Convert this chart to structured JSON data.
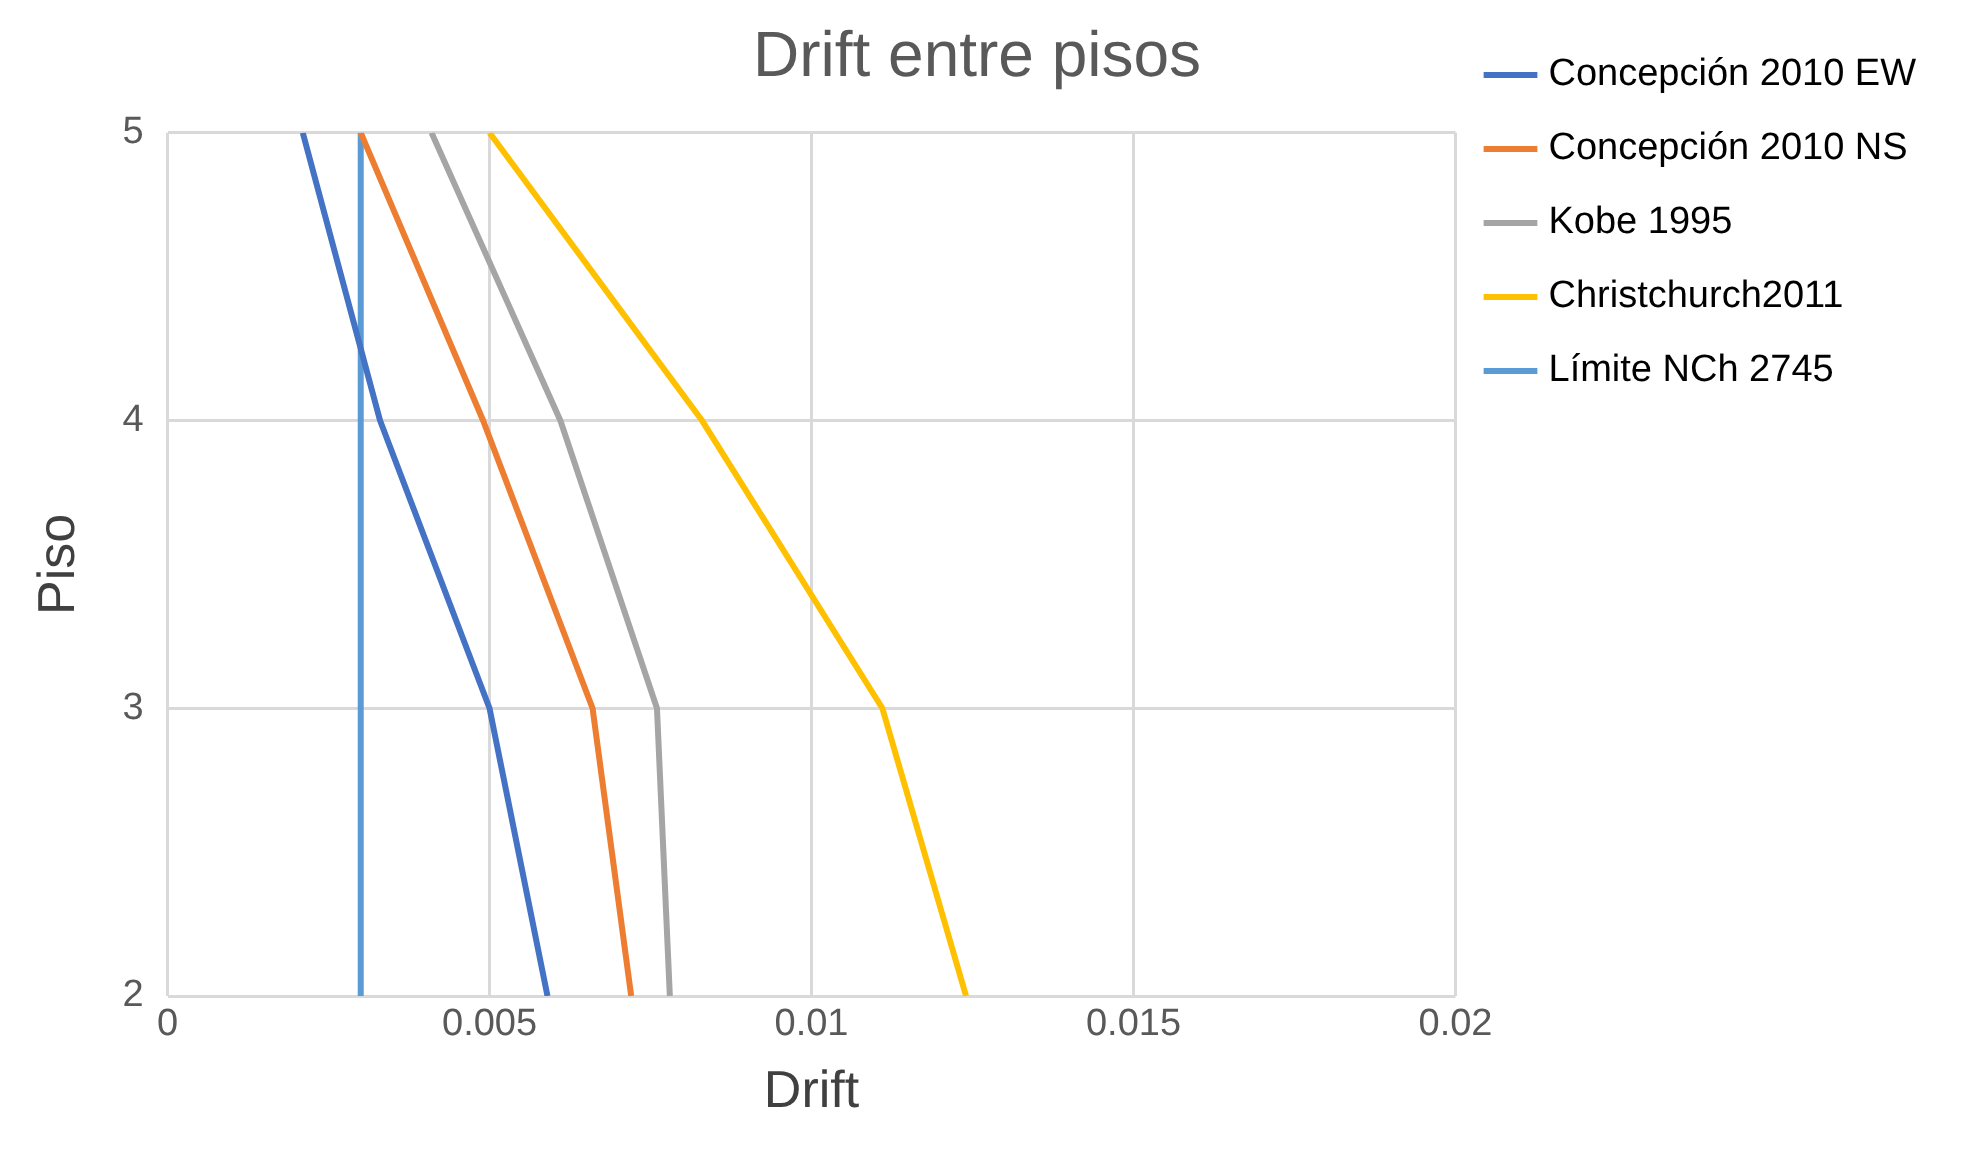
{
  "chart_data": {
    "type": "line",
    "title": "Drift entre pisos",
    "xlabel": "Drift",
    "ylabel": "Piso",
    "xlim": [
      0,
      0.02
    ],
    "xticks": [
      0,
      0.005,
      0.01,
      0.015,
      0.02
    ],
    "ylim": [
      2,
      5
    ],
    "yticks": [
      2,
      3,
      4,
      5
    ],
    "grid": true,
    "legend": "right",
    "marker": "none",
    "line_style": "solid",
    "series": [
      {
        "name": "Concepción 2010 EW",
        "color": "#4472c4",
        "x": [
          0.0021,
          0.0033,
          0.005,
          0.0059
        ],
        "values": [
          5,
          4,
          3,
          2
        ]
      },
      {
        "name": "Concepción 2010 NS",
        "color": "#ed7d31",
        "x": [
          0.003,
          0.0049,
          0.0066,
          0.0072
        ],
        "values": [
          5,
          4,
          3,
          2
        ]
      },
      {
        "name": "Kobe 1995",
        "color": "#a5a5a5",
        "x": [
          0.0041,
          0.0061,
          0.0076,
          0.0078
        ],
        "values": [
          5,
          4,
          3,
          2
        ]
      },
      {
        "name": "Christchurch2011",
        "color": "#ffc000",
        "x": [
          0.005,
          0.0083,
          0.0111,
          0.0124
        ],
        "values": [
          5,
          4,
          3,
          2
        ]
      },
      {
        "name": "Límite NCh 2745",
        "color": "#5b9bd5",
        "x": [
          0.003,
          0.003
        ],
        "values": [
          2,
          5
        ]
      }
    ]
  }
}
